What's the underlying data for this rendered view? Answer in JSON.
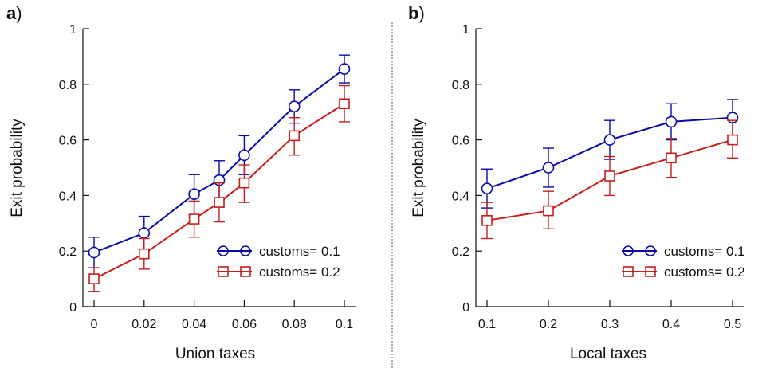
{
  "chart_data": [
    {
      "type": "line",
      "panel_label": "a",
      "xlabel": "Union taxes",
      "ylabel": "Exit probability",
      "x": [
        0,
        0.02,
        0.04,
        0.05,
        0.06,
        0.08,
        0.1
      ],
      "x_tick_labels": [
        "0",
        "0.02",
        "0.04",
        "0.06",
        "0.08",
        "0.1"
      ],
      "x_ticks": [
        0,
        0.02,
        0.04,
        0.06,
        0.08,
        0.1
      ],
      "xlim": [
        0,
        0.1
      ],
      "ylim": [
        0,
        1
      ],
      "y_ticks": [
        0,
        0.2,
        0.4,
        0.6,
        0.8,
        1
      ],
      "y_tick_labels": [
        "0",
        "0.2",
        "0.4",
        "0.6",
        "0.8",
        "1"
      ],
      "legend_position": "bottom-right",
      "series": [
        {
          "name": "customs= 0.1",
          "color": "#0a0aa5",
          "marker": "circle",
          "values": [
            0.195,
            0.265,
            0.405,
            0.455,
            0.545,
            0.72,
            0.855
          ],
          "err_low": [
            0.14,
            0.205,
            0.33,
            0.385,
            0.475,
            0.66,
            0.805
          ],
          "err_high": [
            0.25,
            0.325,
            0.475,
            0.525,
            0.615,
            0.78,
            0.905
          ]
        },
        {
          "name": "customs= 0.2",
          "color": "#c41e1e",
          "marker": "square",
          "values": [
            0.1,
            0.19,
            0.315,
            0.375,
            0.445,
            0.615,
            0.73
          ],
          "err_low": [
            0.055,
            0.135,
            0.25,
            0.305,
            0.375,
            0.545,
            0.665
          ],
          "err_high": [
            0.14,
            0.245,
            0.38,
            0.445,
            0.51,
            0.68,
            0.795
          ]
        }
      ]
    },
    {
      "type": "line",
      "panel_label": "b",
      "xlabel": "Local taxes",
      "ylabel": "Exit probability",
      "x": [
        0.1,
        0.2,
        0.3,
        0.4,
        0.5
      ],
      "x_ticks": [
        0.1,
        0.2,
        0.3,
        0.4,
        0.5
      ],
      "x_tick_labels": [
        "0.1",
        "0.2",
        "0.3",
        "0.4",
        "0.5"
      ],
      "xlim": [
        0.1,
        0.5
      ],
      "ylim": [
        0,
        1
      ],
      "y_ticks": [
        0,
        0.2,
        0.4,
        0.6,
        0.8,
        1
      ],
      "y_tick_labels": [
        "0",
        "0.2",
        "0.4",
        "0.6",
        "0.8",
        "1"
      ],
      "legend_position": "bottom-right",
      "series": [
        {
          "name": "customs= 0.1",
          "color": "#0a0aa5",
          "marker": "circle",
          "values": [
            0.425,
            0.5,
            0.6,
            0.665,
            0.68
          ],
          "err_low": [
            0.355,
            0.43,
            0.53,
            0.6,
            0.615
          ],
          "err_high": [
            0.495,
            0.57,
            0.67,
            0.73,
            0.745
          ]
        },
        {
          "name": "customs= 0.2",
          "color": "#c41e1e",
          "marker": "square",
          "values": [
            0.31,
            0.345,
            0.47,
            0.535,
            0.6
          ],
          "err_low": [
            0.245,
            0.28,
            0.4,
            0.465,
            0.535
          ],
          "err_high": [
            0.375,
            0.415,
            0.54,
            0.605,
            0.67
          ]
        }
      ]
    }
  ]
}
